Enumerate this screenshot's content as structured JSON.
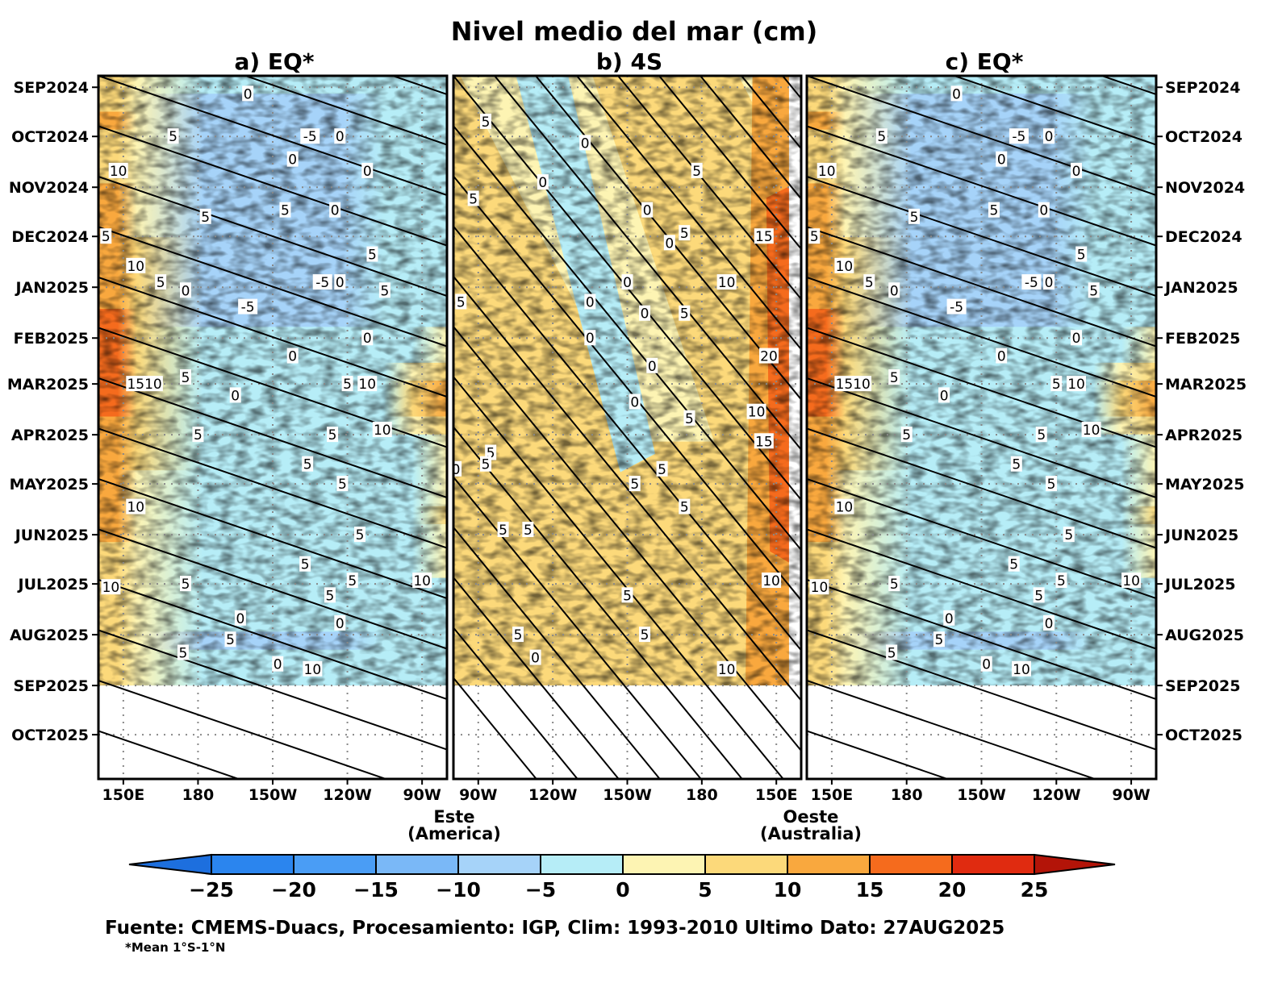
{
  "chart_data": {
    "type": "heatmap",
    "title": "Nivel medio del mar (cm)",
    "panels": [
      {
        "title": "a) EQ*",
        "x_ticks": [
          "150E",
          "180",
          "150W",
          "120W",
          "90W"
        ],
        "x_range": [
          "140E",
          "80W"
        ],
        "data_end": "SEP2025",
        "contour_labels": [
          {
            "value": "0",
            "lon": -160,
            "date": "2024-09-05"
          },
          {
            "value": "-5",
            "lon": -135,
            "date": "2024-10-01"
          },
          {
            "value": "0",
            "lon": -123,
            "date": "2024-10-01"
          },
          {
            "value": "5",
            "lon": 170,
            "date": "2024-10-01"
          },
          {
            "value": "10",
            "lon": 148,
            "date": "2024-10-22"
          },
          {
            "value": "0",
            "lon": -142,
            "date": "2024-10-15"
          },
          {
            "value": "0",
            "lon": -112,
            "date": "2024-10-22"
          },
          {
            "value": "5",
            "lon": -145,
            "date": "2024-11-15"
          },
          {
            "value": "0",
            "lon": -125,
            "date": "2024-11-15"
          },
          {
            "value": "5",
            "lon": -177,
            "date": "2024-11-19"
          },
          {
            "value": "5",
            "lon": 143,
            "date": "2024-12-01"
          },
          {
            "value": "5",
            "lon": -110,
            "date": "2024-12-12"
          },
          {
            "value": "10",
            "lon": 155,
            "date": "2024-12-19"
          },
          {
            "value": "5",
            "lon": 165,
            "date": "2024-12-29"
          },
          {
            "value": "0",
            "lon": 175,
            "date": "2025-01-03"
          },
          {
            "value": "-5",
            "lon": -130,
            "date": "2024-12-29"
          },
          {
            "value": "0",
            "lon": -123,
            "date": "2024-12-29"
          },
          {
            "value": "5",
            "lon": -105,
            "date": "2025-01-03"
          },
          {
            "value": "-5",
            "lon": -160,
            "date": "2025-01-13"
          },
          {
            "value": "0",
            "lon": -112,
            "date": "2025-02-01"
          },
          {
            "value": "0",
            "lon": -142,
            "date": "2025-02-12"
          },
          {
            "value": "5",
            "lon": 175,
            "date": "2025-02-25"
          },
          {
            "value": "15",
            "lon": 155,
            "date": "2025-03-01"
          },
          {
            "value": "10",
            "lon": 162,
            "date": "2025-03-01"
          },
          {
            "value": "0",
            "lon": -165,
            "date": "2025-03-08"
          },
          {
            "value": "5",
            "lon": -120,
            "date": "2025-03-01"
          },
          {
            "value": "10",
            "lon": -112,
            "date": "2025-03-01"
          },
          {
            "value": "5",
            "lon": -180,
            "date": "2025-04-01"
          },
          {
            "value": "5",
            "lon": -126,
            "date": "2025-04-01"
          },
          {
            "value": "10",
            "lon": -106,
            "date": "2025-03-29"
          },
          {
            "value": "5",
            "lon": -136,
            "date": "2025-04-19"
          },
          {
            "value": "5",
            "lon": -122,
            "date": "2025-05-01"
          },
          {
            "value": "10",
            "lon": 155,
            "date": "2025-05-15"
          },
          {
            "value": "5",
            "lon": -115,
            "date": "2025-06-01"
          },
          {
            "value": "5",
            "lon": -137,
            "date": "2025-06-19"
          },
          {
            "value": "10",
            "lon": -90,
            "date": "2025-06-29"
          },
          {
            "value": "5",
            "lon": 175,
            "date": "2025-07-01"
          },
          {
            "value": "10",
            "lon": 145,
            "date": "2025-07-03"
          },
          {
            "value": "5",
            "lon": -127,
            "date": "2025-07-08"
          },
          {
            "value": "5",
            "lon": -118,
            "date": "2025-06-29"
          },
          {
            "value": "0",
            "lon": -163,
            "date": "2025-07-22"
          },
          {
            "value": "0",
            "lon": -123,
            "date": "2025-07-25"
          },
          {
            "value": "5",
            "lon": -167,
            "date": "2025-08-04"
          },
          {
            "value": "5",
            "lon": 174,
            "date": "2025-08-12"
          },
          {
            "value": "0",
            "lon": -148,
            "date": "2025-08-19"
          },
          {
            "value": "10",
            "lon": -134,
            "date": "2025-08-22"
          }
        ]
      },
      {
        "title": "b) 4S",
        "x_ticks": [
          "90W",
          "120W",
          "150W",
          "180",
          "150E"
        ],
        "x_range": [
          "80W",
          "140E"
        ],
        "data_end": "SEP2025",
        "contour_labels": [
          {
            "value": "5",
            "lon": -93,
            "date": "2024-09-22"
          },
          {
            "value": "0",
            "lon": -133,
            "date": "2024-10-05"
          },
          {
            "value": "5",
            "lon": -178,
            "date": "2024-10-22"
          },
          {
            "value": "0",
            "lon": -116,
            "date": "2024-10-29"
          },
          {
            "value": "5",
            "lon": -88,
            "date": "2024-11-08"
          },
          {
            "value": "0",
            "lon": -158,
            "date": "2024-11-15"
          },
          {
            "value": "5",
            "lon": -173,
            "date": "2024-11-29"
          },
          {
            "value": "0",
            "lon": -167,
            "date": "2024-12-05"
          },
          {
            "value": "15",
            "lon": 155,
            "date": "2024-12-01"
          },
          {
            "value": "10",
            "lon": 170,
            "date": "2024-12-29"
          },
          {
            "value": "0",
            "lon": -150,
            "date": "2024-12-29"
          },
          {
            "value": "5",
            "lon": -83,
            "date": "2025-01-10"
          },
          {
            "value": "0",
            "lon": -135,
            "date": "2025-01-10"
          },
          {
            "value": "0",
            "lon": -157,
            "date": "2025-01-17"
          },
          {
            "value": "5",
            "lon": -173,
            "date": "2025-01-17"
          },
          {
            "value": "0",
            "lon": -135,
            "date": "2025-02-01"
          },
          {
            "value": "20",
            "lon": 153,
            "date": "2025-02-12"
          },
          {
            "value": "0",
            "lon": -160,
            "date": "2025-02-18"
          },
          {
            "value": "0",
            "lon": -153,
            "date": "2025-03-12"
          },
          {
            "value": "5",
            "lon": -175,
            "date": "2025-03-22"
          },
          {
            "value": "10",
            "lon": 158,
            "date": "2025-03-18"
          },
          {
            "value": "15",
            "lon": 155,
            "date": "2025-04-05"
          },
          {
            "value": "5",
            "lon": -95,
            "date": "2025-04-12"
          },
          {
            "value": "5",
            "lon": -93,
            "date": "2025-04-19"
          },
          {
            "value": "0",
            "lon": -81,
            "date": "2025-04-22"
          },
          {
            "value": "5",
            "lon": -164,
            "date": "2025-04-22"
          },
          {
            "value": "5",
            "lon": -153,
            "date": "2025-05-01"
          },
          {
            "value": "5",
            "lon": -173,
            "date": "2025-05-15"
          },
          {
            "value": "5",
            "lon": -100,
            "date": "2025-05-29"
          },
          {
            "value": "5",
            "lon": -110,
            "date": "2025-05-29"
          },
          {
            "value": "10",
            "lon": 152,
            "date": "2025-06-29"
          },
          {
            "value": "5",
            "lon": -150,
            "date": "2025-07-08"
          },
          {
            "value": "5",
            "lon": -106,
            "date": "2025-08-01"
          },
          {
            "value": "5",
            "lon": -157,
            "date": "2025-08-01"
          },
          {
            "value": "0",
            "lon": -113,
            "date": "2025-08-15"
          },
          {
            "value": "10",
            "lon": 170,
            "date": "2025-08-22"
          }
        ]
      },
      {
        "title": "c) EQ*",
        "x_ticks": [
          "150E",
          "180",
          "150W",
          "120W",
          "90W"
        ],
        "x_range": [
          "140E",
          "80W"
        ],
        "data_end": "SEP2025",
        "contour_labels": [
          {
            "value": "0",
            "lon": -160,
            "date": "2024-09-05"
          },
          {
            "value": "-5",
            "lon": -135,
            "date": "2024-10-01"
          },
          {
            "value": "0",
            "lon": -123,
            "date": "2024-10-01"
          },
          {
            "value": "5",
            "lon": 170,
            "date": "2024-10-01"
          },
          {
            "value": "10",
            "lon": 148,
            "date": "2024-10-22"
          },
          {
            "value": "0",
            "lon": -142,
            "date": "2024-10-15"
          },
          {
            "value": "0",
            "lon": -112,
            "date": "2024-10-22"
          },
          {
            "value": "5",
            "lon": -145,
            "date": "2024-11-15"
          },
          {
            "value": "0",
            "lon": -125,
            "date": "2024-11-15"
          },
          {
            "value": "5",
            "lon": -177,
            "date": "2024-11-19"
          },
          {
            "value": "5",
            "lon": 143,
            "date": "2024-12-01"
          },
          {
            "value": "5",
            "lon": -110,
            "date": "2024-12-12"
          },
          {
            "value": "10",
            "lon": 155,
            "date": "2024-12-19"
          },
          {
            "value": "5",
            "lon": 165,
            "date": "2024-12-29"
          },
          {
            "value": "0",
            "lon": 175,
            "date": "2025-01-03"
          },
          {
            "value": "-5",
            "lon": -130,
            "date": "2024-12-29"
          },
          {
            "value": "0",
            "lon": -123,
            "date": "2024-12-29"
          },
          {
            "value": "5",
            "lon": -105,
            "date": "2025-01-03"
          },
          {
            "value": "-5",
            "lon": -160,
            "date": "2025-01-13"
          },
          {
            "value": "0",
            "lon": -112,
            "date": "2025-02-01"
          },
          {
            "value": "0",
            "lon": -142,
            "date": "2025-02-12"
          },
          {
            "value": "5",
            "lon": 175,
            "date": "2025-02-25"
          },
          {
            "value": "15",
            "lon": 155,
            "date": "2025-03-01"
          },
          {
            "value": "10",
            "lon": 162,
            "date": "2025-03-01"
          },
          {
            "value": "0",
            "lon": -165,
            "date": "2025-03-08"
          },
          {
            "value": "5",
            "lon": -120,
            "date": "2025-03-01"
          },
          {
            "value": "10",
            "lon": -112,
            "date": "2025-03-01"
          },
          {
            "value": "5",
            "lon": -180,
            "date": "2025-04-01"
          },
          {
            "value": "5",
            "lon": -126,
            "date": "2025-04-01"
          },
          {
            "value": "10",
            "lon": -106,
            "date": "2025-03-29"
          },
          {
            "value": "5",
            "lon": -136,
            "date": "2025-04-19"
          },
          {
            "value": "5",
            "lon": -122,
            "date": "2025-05-01"
          },
          {
            "value": "10",
            "lon": 155,
            "date": "2025-05-15"
          },
          {
            "value": "5",
            "lon": -115,
            "date": "2025-06-01"
          },
          {
            "value": "5",
            "lon": -137,
            "date": "2025-06-19"
          },
          {
            "value": "10",
            "lon": -90,
            "date": "2025-06-29"
          },
          {
            "value": "5",
            "lon": 175,
            "date": "2025-07-01"
          },
          {
            "value": "10",
            "lon": 145,
            "date": "2025-07-03"
          },
          {
            "value": "5",
            "lon": -127,
            "date": "2025-07-08"
          },
          {
            "value": "5",
            "lon": -118,
            "date": "2025-06-29"
          },
          {
            "value": "0",
            "lon": -163,
            "date": "2025-07-22"
          },
          {
            "value": "0",
            "lon": -123,
            "date": "2025-07-25"
          },
          {
            "value": "5",
            "lon": -167,
            "date": "2025-08-04"
          },
          {
            "value": "5",
            "lon": 174,
            "date": "2025-08-12"
          },
          {
            "value": "0",
            "lon": -148,
            "date": "2025-08-19"
          },
          {
            "value": "10",
            "lon": -134,
            "date": "2025-08-22"
          }
        ]
      }
    ],
    "y_ticks": [
      "SEP2024",
      "OCT2024",
      "NOV2024",
      "DEC2024",
      "JAN2025",
      "FEB2025",
      "MAR2025",
      "APR2025",
      "MAY2025",
      "JUN2025",
      "JUL2025",
      "AUG2025",
      "SEP2025",
      "OCT2025"
    ],
    "y_range": [
      "2024-08-25",
      "2025-10-28"
    ],
    "side_labels": {
      "east": [
        "Este",
        "(America)"
      ],
      "west": [
        "Oeste",
        "(Australia)"
      ]
    },
    "colorbar": {
      "ticks": [
        "-25",
        "-20",
        "-15",
        "-10",
        "-5",
        "0",
        "5",
        "10",
        "15",
        "20",
        "25"
      ],
      "colors": [
        "#1d6fde",
        "#2b85ee",
        "#4a9df5",
        "#7ab8f7",
        "#a6d3f9",
        "#b6edf7",
        "#fdf4b3",
        "#fcd97a",
        "#f9a83e",
        "#f56b1d",
        "#e02b10",
        "#b31408"
      ]
    },
    "source": "Fuente: CMEMS-Duacs,  Procesamiento: IGP,   Clim: 1993-2010  Ultimo Dato: 27AUG2025",
    "note": "*Mean 1°S-1°N"
  }
}
